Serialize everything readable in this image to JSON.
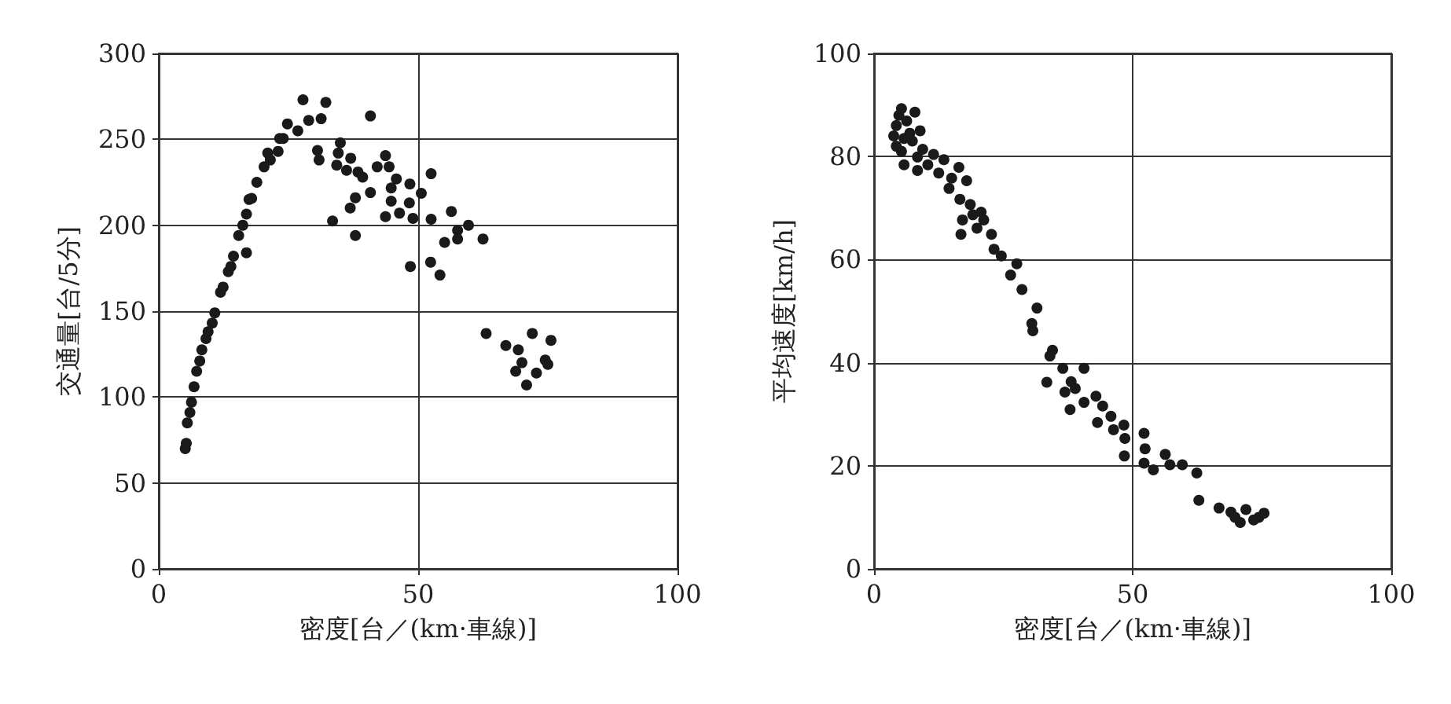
{
  "chart_data": [
    {
      "type": "scatter",
      "xlabel": "密度[台／(km·車線)]",
      "ylabel": "交通量[台/5分]",
      "xlim": [
        0,
        100
      ],
      "xticks": [
        0,
        50,
        100
      ],
      "ylim": [
        0,
        300
      ],
      "yticks": [
        0,
        50,
        100,
        150,
        200,
        250,
        300
      ],
      "grid": true,
      "marker": "circle",
      "series": [
        {
          "color": "#1a1a1a",
          "x": [
            5.1,
            5.3,
            5.5,
            6,
            6.3,
            6.8,
            7.3,
            7.9,
            8.3,
            9.1,
            9.5,
            10.3,
            10.8,
            11.9,
            12.4,
            13.4,
            13.9,
            14.4,
            15.4,
            16.2,
            16.9,
            16.9,
            17.4,
            17.9,
            18.9,
            20.3,
            21,
            21.5,
            23,
            23.3,
            24,
            24.8,
            26.8,
            27.8,
            28.9,
            30.6,
            30.9,
            31.3,
            32.2,
            33.5,
            34.3,
            34.6,
            35,
            36.2,
            36.9,
            37,
            37.9,
            37.9,
            38.4,
            39.3,
            40.8,
            40.8,
            42.1,
            43.7,
            43.7,
            44.4,
            44.8,
            44.8,
            45.8,
            46.4,
            48.3,
            48.4,
            48.5,
            49,
            50.6,
            52.4,
            52.5,
            52.5,
            54.2,
            55.1,
            56.4,
            57.6,
            57.6,
            59.7,
            62.5,
            63.1,
            66.9,
            68.8,
            69.3,
            70,
            70.9,
            72,
            72.8,
            74.5,
            75,
            75.6
          ],
          "values": [
            70,
            73,
            85,
            91,
            97,
            106,
            115,
            121,
            127.5,
            134,
            138,
            143,
            149,
            161,
            164,
            173,
            176,
            182,
            194,
            200,
            206.5,
            184,
            215,
            215.6,
            225,
            234,
            242,
            238,
            243,
            250.5,
            250.5,
            259,
            255,
            273,
            261,
            243.5,
            238,
            262,
            271.5,
            202.5,
            235,
            242,
            248,
            232,
            210,
            239,
            216,
            194,
            231,
            228,
            263.6,
            219,
            234,
            240.5,
            205,
            234,
            221.7,
            214,
            227,
            207,
            213,
            224,
            176,
            204,
            218.6,
            178.5,
            230,
            203.5,
            171,
            190,
            208,
            197,
            192,
            200,
            192,
            137,
            130,
            115,
            127.5,
            120,
            107,
            137,
            114,
            121.5,
            119,
            133
          ]
        }
      ]
    },
    {
      "type": "scatter",
      "xlabel": "密度[台／(km·車線)]",
      "ylabel": "平均速度[km/h]",
      "xlim": [
        0,
        100
      ],
      "xticks": [
        0,
        50,
        100
      ],
      "ylim": [
        0,
        100
      ],
      "yticks": [
        0,
        20,
        40,
        60,
        80,
        100
      ],
      "grid": true,
      "marker": "circle",
      "series": [
        {
          "color": "#1a1a1a",
          "x": [
            3.8,
            4.3,
            4.3,
            4.8,
            5.3,
            5.3,
            5.8,
            5.8,
            6.3,
            6.9,
            7.4,
            7.9,
            8.4,
            8.4,
            8.9,
            9.4,
            10.4,
            11.5,
            12.5,
            13.5,
            14.5,
            15,
            16.4,
            16.6,
            16.8,
            17.1,
            17.9,
            18.6,
            19.1,
            19.9,
            20.7,
            21.2,
            22.7,
            23.2,
            24.6,
            26.4,
            27.6,
            28.6,
            30.5,
            30.7,
            31.5,
            33.4,
            34,
            34.5,
            36.5,
            36.9,
            37.9,
            38.1,
            38.9,
            40.6,
            40.6,
            42.9,
            43.2,
            44.2,
            45.8,
            46.3,
            48.3,
            48.4,
            48.5,
            52.2,
            52.2,
            52.4,
            54,
            56.3,
            57.2,
            59.6,
            62.4,
            62.8,
            66.7,
            69,
            69.8,
            70.8,
            71.9,
            73.4,
            74.4,
            75.4
          ],
          "values": [
            84,
            86,
            82,
            88,
            89.3,
            81,
            78.4,
            83.5,
            86.9,
            84.5,
            83,
            88.6,
            77.3,
            79.9,
            85,
            81.4,
            78.4,
            80.4,
            76.8,
            79.4,
            73.8,
            75.8,
            77.9,
            71.7,
            64.9,
            67.7,
            75.3,
            70.7,
            68.7,
            66.1,
            69.2,
            67.7,
            64.9,
            62,
            60.7,
            57,
            59.2,
            54.2,
            47.6,
            46.2,
            50.6,
            36.2,
            41.3,
            42.4,
            38.9,
            34.3,
            30.9,
            36.3,
            35,
            38.9,
            32.3,
            33.5,
            28.4,
            31.6,
            29.6,
            27,
            27.9,
            21.9,
            25.3,
            26.3,
            20.5,
            23.3,
            19.2,
            22.2,
            20.2,
            20.2,
            18.6,
            13.3,
            11.8,
            11,
            10,
            9,
            11.5,
            9.5,
            10,
            10.8
          ]
        }
      ]
    }
  ]
}
